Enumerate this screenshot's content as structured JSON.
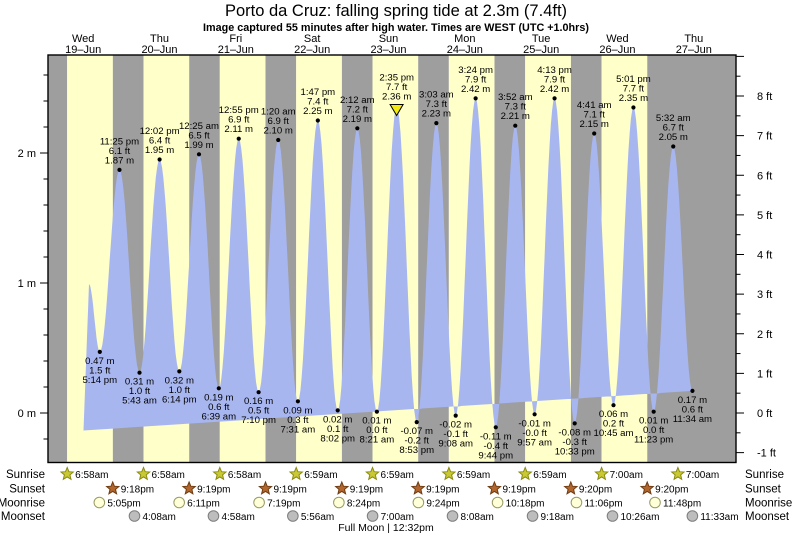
{
  "title": "Porto da Cruz: falling  spring tide at 2.3m (7.4ft)",
  "subtitle": "Image captured 55 minutes after high water. Times are WEST (UTC +1.0hrs)",
  "footer": {
    "full_moon": "Full Moon | 12:32pm"
  },
  "colors": {
    "day_band": "#ffffc9",
    "night_band": "#9e9e9e",
    "tide_fill": "#a8b6f0",
    "date_text": "#e83434",
    "now_marker": "#f2ea10",
    "sunrise_icon": "#c9c935",
    "sunrise_icon_edge": "#8a8a10",
    "sunset_icon": "#b2662d",
    "sunset_icon_edge": "#6e3c12",
    "moonrise_icon": "#ffffd8",
    "moonrise_icon_edge": "#9a9a66",
    "moonset_icon": "#bdbdbd",
    "moonset_icon_edge": "#7d7d7d"
  },
  "chart_data": {
    "type": "area",
    "title": "Porto da Cruz tide height over 9 days",
    "units": {
      "m": " m",
      "ft": " ft"
    },
    "days": [
      {
        "name": "Wed",
        "date": "19–Jun"
      },
      {
        "name": "Thu",
        "date": "20–Jun"
      },
      {
        "name": "Fri",
        "date": "21–Jun"
      },
      {
        "name": "Sat",
        "date": "22–Jun"
      },
      {
        "name": "Sun",
        "date": "23–Jun"
      },
      {
        "name": "Mon",
        "date": "24–Jun"
      },
      {
        "name": "Tue",
        "date": "25–Jun"
      },
      {
        "name": "Wed",
        "date": "26–Jun"
      },
      {
        "name": "Thu",
        "date": "27–Jun"
      }
    ],
    "y_axis_left": {
      "unit": "m",
      "labels": [
        {
          "value": 0,
          "text": "0 m"
        },
        {
          "value": 1,
          "text": "1 m"
        },
        {
          "value": 2,
          "text": "2 m"
        }
      ],
      "minor_step": 0.2,
      "range_m": [
        -0.38,
        2.75
      ]
    },
    "y_axis_right": {
      "unit": "ft",
      "labels": [
        {
          "value": -1,
          "text": "-1 ft"
        },
        {
          "value": 0,
          "text": "0 ft"
        },
        {
          "value": 1,
          "text": "1 ft"
        },
        {
          "value": 2,
          "text": "2 ft"
        },
        {
          "value": 3,
          "text": "3 ft"
        },
        {
          "value": 4,
          "text": "4 ft"
        },
        {
          "value": 5,
          "text": "5 ft"
        },
        {
          "value": 6,
          "text": "6 ft"
        },
        {
          "value": 7,
          "text": "7 ft"
        },
        {
          "value": 8,
          "text": "8 ft"
        }
      ],
      "minor_step": 0.5
    },
    "tide_events": [
      {
        "type": "low",
        "day": 0,
        "time": "5:14 pm",
        "m": "0.47",
        "ft": "1.5"
      },
      {
        "type": "high",
        "day": 0,
        "time": "11:25 pm",
        "m": "1.87",
        "ft": "6.1"
      },
      {
        "type": "low",
        "day": 1,
        "time": "5:43 am",
        "m": "0.31",
        "ft": "1.0"
      },
      {
        "type": "high",
        "day": 1,
        "time": "12:02 pm",
        "m": "1.95",
        "ft": "6.4"
      },
      {
        "type": "low",
        "day": 1,
        "time": "6:14 pm",
        "m": "0.32",
        "ft": "1.0"
      },
      {
        "type": "high",
        "day": 2,
        "time": "12:25 am",
        "m": "1.99",
        "ft": "6.5"
      },
      {
        "type": "low",
        "day": 2,
        "time": "6:39 am",
        "m": "0.19",
        "ft": "0.6"
      },
      {
        "type": "high",
        "day": 2,
        "time": "12:55 pm",
        "m": "2.11",
        "ft": "6.9"
      },
      {
        "type": "low",
        "day": 2,
        "time": "7:10 pm",
        "m": "0.16",
        "ft": "0.5"
      },
      {
        "type": "high",
        "day": 3,
        "time": "1:20 am",
        "m": "2.10",
        "ft": "6.9"
      },
      {
        "type": "low",
        "day": 3,
        "time": "7:31 am",
        "m": "0.09",
        "ft": "0.3"
      },
      {
        "type": "high",
        "day": 3,
        "time": "1:47 pm",
        "m": "2.25",
        "ft": "7.4"
      },
      {
        "type": "low",
        "day": 3,
        "time": "8:02 pm",
        "m": "0.02",
        "ft": "0.1"
      },
      {
        "type": "high",
        "day": 4,
        "time": "2:12 am",
        "m": "2.19",
        "ft": "7.2"
      },
      {
        "type": "low",
        "day": 4,
        "time": "8:21 am",
        "m": "0.01",
        "ft": "0.0"
      },
      {
        "type": "high",
        "day": 4,
        "time": "2:35 pm",
        "m": "2.36",
        "ft": "7.7",
        "now": true
      },
      {
        "type": "low",
        "day": 4,
        "time": "8:53 pm",
        "m": "-0.07",
        "ft": "-0.2"
      },
      {
        "type": "high",
        "day": 5,
        "time": "3:03 am",
        "m": "2.23",
        "ft": "7.3"
      },
      {
        "type": "low",
        "day": 5,
        "time": "9:08 am",
        "m": "-0.02",
        "ft": "-0.1"
      },
      {
        "type": "high",
        "day": 5,
        "time": "3:24 pm",
        "m": "2.42",
        "ft": "7.9"
      },
      {
        "type": "low",
        "day": 5,
        "time": "9:44 pm",
        "m": "-0.11",
        "ft": "-0.4"
      },
      {
        "type": "high",
        "day": 6,
        "time": "3:52 am",
        "m": "2.21",
        "ft": "7.3"
      },
      {
        "type": "low",
        "day": 6,
        "time": "9:57 am",
        "m": "-0.01",
        "ft": "-0.0"
      },
      {
        "type": "high",
        "day": 6,
        "time": "4:13 pm",
        "m": "2.42",
        "ft": "7.9"
      },
      {
        "type": "low",
        "day": 6,
        "time": "10:33 pm",
        "m": "-0.08",
        "ft": "-0.3"
      },
      {
        "type": "high",
        "day": 7,
        "time": "4:41 am",
        "m": "2.15",
        "ft": "7.1"
      },
      {
        "type": "low",
        "day": 7,
        "time": "10:45 am",
        "m": "0.06",
        "ft": "0.2"
      },
      {
        "type": "high",
        "day": 7,
        "time": "5:01 pm",
        "m": "2.35",
        "ft": "7.7"
      },
      {
        "type": "low",
        "day": 7,
        "time": "11:23 pm",
        "m": "0.01",
        "ft": "0.0"
      },
      {
        "type": "high",
        "day": 8,
        "time": "5:32 am",
        "m": "2.05",
        "ft": "6.7"
      },
      {
        "type": "low",
        "day": 8,
        "time": "11:34 am",
        "m": "0.17",
        "ft": "0.6"
      }
    ],
    "now_marker": {
      "day": 4,
      "time": "3:30 pm"
    },
    "curve_window": {
      "start": {
        "t": 0.504,
        "apex_t": 0.5765,
        "apex_m": 0.99
      },
      "end": {
        "t": 8.59,
        "end_m": 0.24
      }
    },
    "sun_moon": {
      "rows": [
        {
          "key": "sunrise",
          "label": "Sunrise",
          "icon": "sunrise-star",
          "events": [
            {
              "day": 0,
              "time": "6:58am"
            },
            {
              "day": 1,
              "time": "6:58am"
            },
            {
              "day": 2,
              "time": "6:58am"
            },
            {
              "day": 3,
              "time": "6:59am"
            },
            {
              "day": 4,
              "time": "6:59am"
            },
            {
              "day": 5,
              "time": "6:59am"
            },
            {
              "day": 6,
              "time": "6:59am"
            },
            {
              "day": 7,
              "time": "7:00am"
            },
            {
              "day": 8,
              "time": "7:00am"
            }
          ]
        },
        {
          "key": "sunset",
          "label": "Sunset",
          "icon": "sunset-star",
          "events": [
            {
              "day": 0,
              "time": "9:18pm"
            },
            {
              "day": 1,
              "time": "9:19pm"
            },
            {
              "day": 2,
              "time": "9:19pm"
            },
            {
              "day": 3,
              "time": "9:19pm"
            },
            {
              "day": 4,
              "time": "9:19pm"
            },
            {
              "day": 5,
              "time": "9:19pm"
            },
            {
              "day": 6,
              "time": "9:20pm"
            },
            {
              "day": 7,
              "time": "9:20pm"
            }
          ]
        },
        {
          "key": "moonrise",
          "label": "Moonrise",
          "icon": "moonrise-circle",
          "events": [
            {
              "day": 0,
              "time": "5:05pm"
            },
            {
              "day": 1,
              "time": "6:11pm"
            },
            {
              "day": 2,
              "time": "7:19pm"
            },
            {
              "day": 3,
              "time": "8:24pm"
            },
            {
              "day": 4,
              "time": "9:24pm"
            },
            {
              "day": 5,
              "time": "10:18pm"
            },
            {
              "day": 6,
              "time": "11:06pm"
            },
            {
              "day": 7,
              "time": "11:48pm"
            }
          ]
        },
        {
          "key": "moonset",
          "label": "Moonset",
          "icon": "moonset-circle",
          "events": [
            {
              "day": 1,
              "time": "4:08am"
            },
            {
              "day": 2,
              "time": "4:58am"
            },
            {
              "day": 3,
              "time": "5:56am"
            },
            {
              "day": 4,
              "time": "7:00am"
            },
            {
              "day": 5,
              "time": "8:08am"
            },
            {
              "day": 6,
              "time": "9:18am"
            },
            {
              "day": 7,
              "time": "10:26am"
            },
            {
              "day": 8,
              "time": "11:33am"
            }
          ]
        }
      ]
    }
  }
}
